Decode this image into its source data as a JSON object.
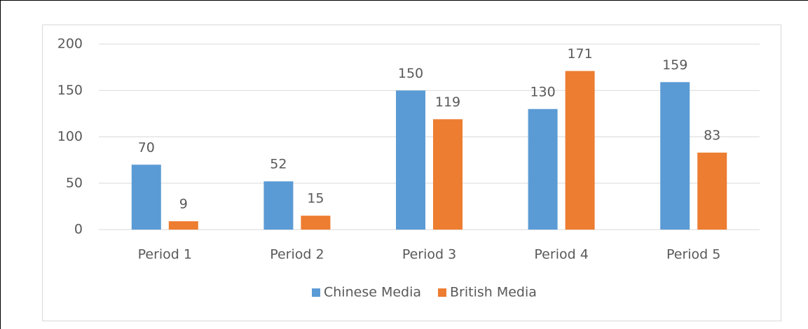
{
  "chart_data": {
    "type": "bar",
    "categories": [
      "Period 1",
      "Period 2",
      "Period 3",
      "Period 4",
      "Period 5"
    ],
    "series": [
      {
        "name": "Chinese Media",
        "color": "#5b9bd5",
        "values": [
          70,
          52,
          150,
          130,
          159
        ]
      },
      {
        "name": "British Media",
        "color": "#ed7d31",
        "values": [
          9,
          15,
          119,
          171,
          83
        ]
      }
    ],
    "ylim": [
      0,
      200
    ],
    "yticks": [
      0,
      50,
      100,
      150,
      200
    ],
    "grid": true,
    "legend": "bottom"
  }
}
